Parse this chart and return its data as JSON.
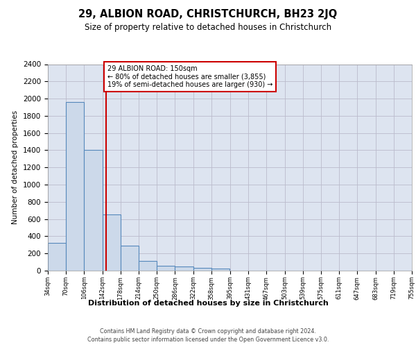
{
  "title": "29, ALBION ROAD, CHRISTCHURCH, BH23 2JQ",
  "subtitle": "Size of property relative to detached houses in Christchurch",
  "xlabel": "Distribution of detached houses by size in Christchurch",
  "ylabel": "Number of detached properties",
  "bar_color": "#ccd9ea",
  "bar_edge_color": "#5588bb",
  "bar_edge_width": 0.8,
  "grid_color": "#bbbbcc",
  "background_color": "#dde4f0",
  "red_line_x": 150,
  "red_line_color": "#cc0000",
  "annotation_text": "29 ALBION ROAD: 150sqm\n← 80% of detached houses are smaller (3,855)\n19% of semi-detached houses are larger (930) →",
  "annotation_box_color": "#ffffff",
  "annotation_box_edge_color": "#cc0000",
  "bin_edges": [
    34,
    70,
    106,
    142,
    178,
    214,
    250,
    286,
    322,
    358,
    395,
    431,
    467,
    503,
    539,
    575,
    611,
    647,
    683,
    719,
    755
  ],
  "bar_heights": [
    325,
    1960,
    1400,
    650,
    290,
    110,
    55,
    45,
    35,
    25,
    0,
    0,
    0,
    0,
    0,
    0,
    0,
    0,
    0,
    0
  ],
  "ylim": [
    0,
    2400
  ],
  "yticks": [
    0,
    200,
    400,
    600,
    800,
    1000,
    1200,
    1400,
    1600,
    1800,
    2000,
    2200,
    2400
  ],
  "footer_line1": "Contains HM Land Registry data © Crown copyright and database right 2024.",
  "footer_line2": "Contains public sector information licensed under the Open Government Licence v3.0."
}
